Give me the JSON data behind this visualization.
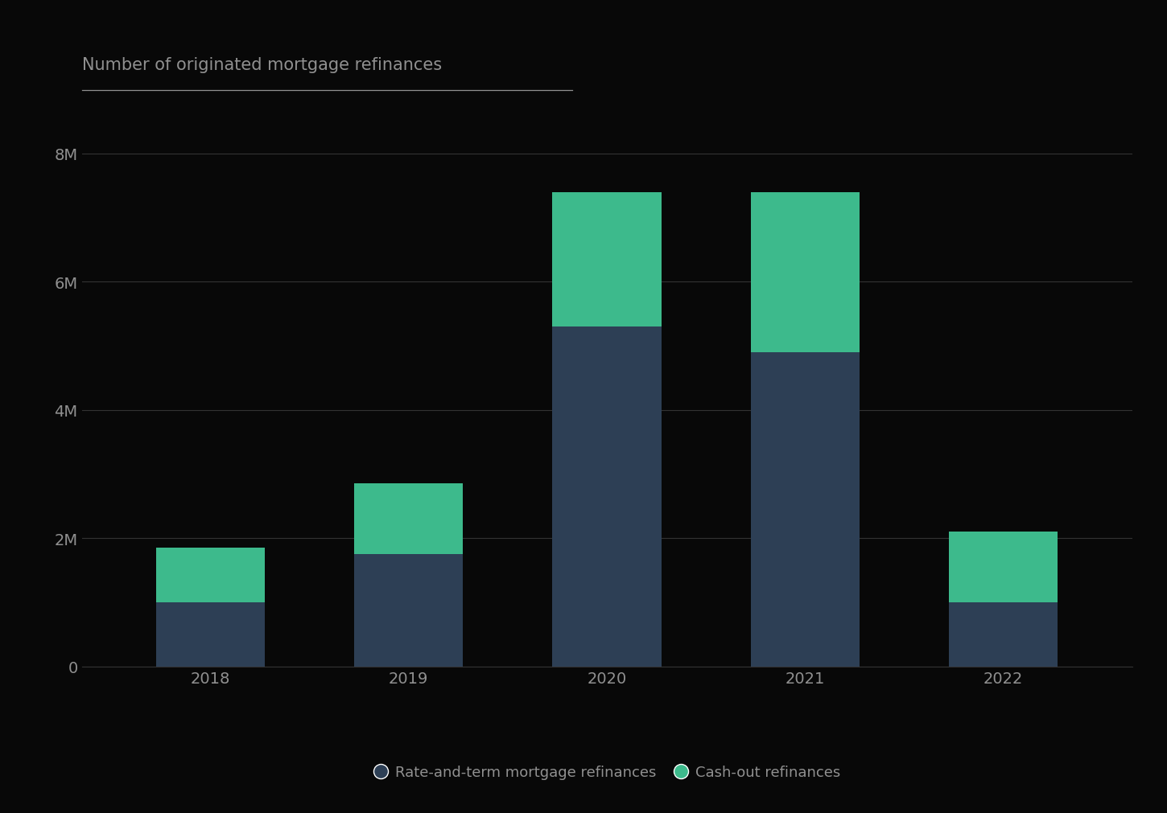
{
  "years": [
    "2018",
    "2019",
    "2020",
    "2021",
    "2022"
  ],
  "rate_and_term": [
    1.0,
    1.75,
    5.3,
    4.9,
    1.0
  ],
  "cash_out": [
    0.85,
    1.1,
    2.1,
    2.5,
    1.1
  ],
  "bar_color_rate": "#2d3f55",
  "bar_color_cashout": "#3dba8c",
  "background_color": "#080808",
  "text_color": "#909090",
  "grid_color": "#333333",
  "title": "Number of originated mortgage refinances",
  "ylim": [
    0,
    8.5
  ],
  "yticks": [
    0,
    2,
    4,
    6,
    8
  ],
  "ytick_labels": [
    "0",
    "2M",
    "4M",
    "6M",
    "8M"
  ],
  "legend_rate_label": "Rate-and-term mortgage refinances",
  "legend_cashout_label": "Cash-out refinances",
  "bar_width": 0.55,
  "title_fontsize": 15,
  "tick_fontsize": 14,
  "legend_fontsize": 13
}
